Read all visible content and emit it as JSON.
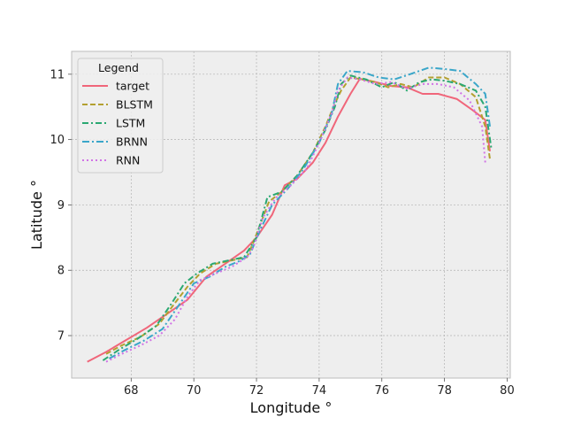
{
  "chart_data": {
    "type": "line",
    "title": "",
    "xlabel": "Longitude °",
    "ylabel": "Latitude °",
    "xlim": [
      66.1,
      80.1
    ],
    "ylim": [
      6.35,
      11.35
    ],
    "xticks": [
      68,
      70,
      72,
      74,
      76,
      78,
      80
    ],
    "yticks": [
      7,
      8,
      9,
      10,
      11
    ],
    "grid": true,
    "legend": {
      "title": "Legend",
      "position": "top-left"
    },
    "series": [
      {
        "name": "target",
        "color": "#f0667a",
        "dash": "solid",
        "x": [
          66.6,
          67.2,
          67.8,
          68.5,
          69.2,
          69.8,
          70.4,
          71.0,
          71.6,
          72.0,
          72.5,
          72.9,
          73.3,
          73.8,
          74.2,
          74.6,
          75.0,
          75.3,
          75.8,
          76.3,
          76.8,
          77.3,
          77.8,
          78.4,
          78.9,
          79.3,
          79.45
        ],
        "y": [
          6.6,
          6.75,
          6.92,
          7.12,
          7.35,
          7.55,
          7.9,
          8.1,
          8.3,
          8.5,
          8.85,
          9.3,
          9.4,
          9.65,
          9.95,
          10.35,
          10.7,
          10.93,
          10.88,
          10.82,
          10.8,
          10.7,
          10.7,
          10.62,
          10.45,
          10.3,
          9.82
        ]
      },
      {
        "name": "BLSTM",
        "color": "#b3a030",
        "dash": "6,3",
        "x": [
          67.2,
          67.7,
          68.3,
          68.9,
          69.4,
          69.8,
          70.2,
          70.7,
          71.2,
          71.7,
          72.0,
          72.4,
          72.8,
          73.3,
          73.8,
          74.2,
          74.5,
          74.7,
          75.0,
          75.4,
          75.8,
          76.2,
          76.6,
          77.0,
          77.5,
          78.0,
          78.5,
          79.0,
          79.3,
          79.45
        ],
        "y": [
          6.72,
          6.85,
          6.98,
          7.18,
          7.5,
          7.75,
          7.95,
          8.1,
          8.15,
          8.2,
          8.55,
          9.05,
          9.2,
          9.45,
          9.8,
          10.2,
          10.55,
          10.75,
          10.95,
          10.92,
          10.88,
          10.8,
          10.85,
          10.8,
          10.95,
          10.95,
          10.85,
          10.65,
          10.2,
          9.7
        ]
      },
      {
        "name": "LSTM",
        "color": "#2aa872",
        "dash": "7,3,2,3",
        "x": [
          67.1,
          67.6,
          68.2,
          68.8,
          69.3,
          69.7,
          70.1,
          70.6,
          71.1,
          71.6,
          72.0,
          72.35,
          72.8,
          73.3,
          73.8,
          74.2,
          74.5,
          74.7,
          75.0,
          75.5,
          76.0,
          76.4,
          76.8,
          77.2,
          77.6,
          78.0,
          78.5,
          79.0,
          79.3,
          79.5
        ],
        "y": [
          6.62,
          6.78,
          6.95,
          7.15,
          7.5,
          7.8,
          7.95,
          8.1,
          8.15,
          8.2,
          8.5,
          9.12,
          9.2,
          9.45,
          9.8,
          10.15,
          10.5,
          10.85,
          10.98,
          10.92,
          10.8,
          10.88,
          10.75,
          10.88,
          10.92,
          10.9,
          10.85,
          10.75,
          10.5,
          9.85
        ]
      },
      {
        "name": "BRNN",
        "color": "#3aa6c9",
        "dash": "8,3,2,3",
        "x": [
          67.3,
          67.8,
          68.4,
          69.0,
          69.5,
          70.0,
          70.5,
          71.0,
          71.5,
          71.8,
          72.1,
          72.5,
          73.0,
          73.5,
          74.0,
          74.4,
          74.6,
          74.9,
          75.4,
          75.9,
          76.4,
          76.9,
          77.5,
          78.0,
          78.5,
          79.0,
          79.3,
          79.45
        ],
        "y": [
          6.65,
          6.78,
          6.92,
          7.1,
          7.45,
          7.8,
          7.9,
          8.05,
          8.15,
          8.25,
          8.6,
          9.0,
          9.25,
          9.55,
          9.95,
          10.4,
          10.85,
          11.05,
          11.03,
          10.95,
          10.92,
          11.0,
          11.1,
          11.08,
          11.05,
          10.85,
          10.7,
          10.2
        ]
      },
      {
        "name": "RNN",
        "color": "#d173e6",
        "dash": "2,3",
        "x": [
          67.2,
          67.7,
          68.3,
          68.9,
          69.4,
          69.8,
          70.2,
          70.7,
          71.2,
          71.7,
          71.9,
          72.2,
          72.6,
          73.1,
          73.6,
          74.0,
          74.4,
          74.6,
          74.9,
          75.3,
          75.8,
          76.3,
          76.8,
          77.3,
          77.8,
          78.3,
          78.8,
          79.2,
          79.3
        ],
        "y": [
          6.6,
          6.72,
          6.85,
          7.0,
          7.25,
          7.6,
          7.85,
          7.95,
          8.05,
          8.2,
          8.35,
          8.8,
          9.1,
          9.3,
          9.55,
          9.95,
          10.4,
          10.75,
          10.95,
          10.92,
          10.85,
          10.88,
          10.78,
          10.85,
          10.85,
          10.8,
          10.6,
          10.2,
          9.65
        ]
      }
    ]
  }
}
